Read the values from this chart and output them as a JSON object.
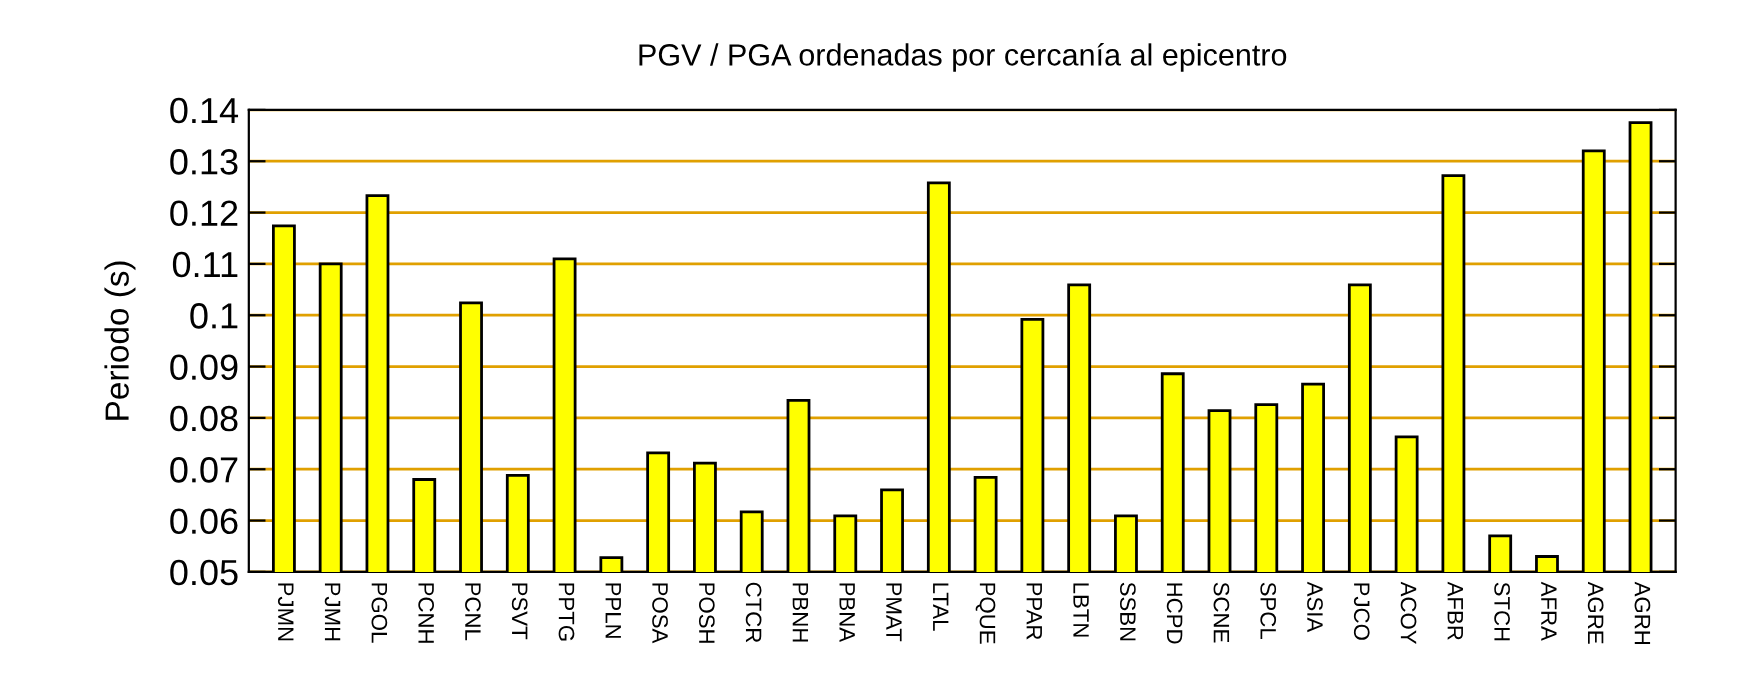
{
  "chart_data": {
    "type": "bar",
    "title": "PGV / PGA ordenadas por cercanía al epicentro",
    "ylabel": "Periodo (s)",
    "categories": [
      "PJMN",
      "PJMH",
      "PGOL",
      "PCNH",
      "PCNL",
      "PSVT",
      "PPTG",
      "PPLN",
      "POSA",
      "POSH",
      "CTCR",
      "PBNH",
      "PBNA",
      "PMAT",
      "LTAL",
      "PQUE",
      "PPAR",
      "LBTN",
      "SSBN",
      "HCPD",
      "SCNE",
      "SPCL",
      "ASIA",
      "PJCO",
      "ACOY",
      "AFBR",
      "STCH",
      "AFRA",
      "AGRE",
      "AGRH"
    ],
    "values": [
      0.1174,
      0.11,
      0.1233,
      0.068,
      0.1024,
      0.0688,
      0.111,
      0.0528,
      0.0732,
      0.0712,
      0.0617,
      0.0834,
      0.0609,
      0.066,
      0.1258,
      0.0684,
      0.0992,
      0.1059,
      0.0609,
      0.0886,
      0.0814,
      0.0826,
      0.0866,
      0.1059,
      0.0763,
      0.1272,
      0.057,
      0.053,
      0.132,
      0.1375
    ],
    "color": "#ffff00",
    "ylim": [
      0.05,
      0.14
    ],
    "yticks": [
      0.05,
      0.06,
      0.07,
      0.08,
      0.09,
      0.1,
      0.11,
      0.12,
      0.13,
      0.14
    ],
    "grid": "y"
  }
}
